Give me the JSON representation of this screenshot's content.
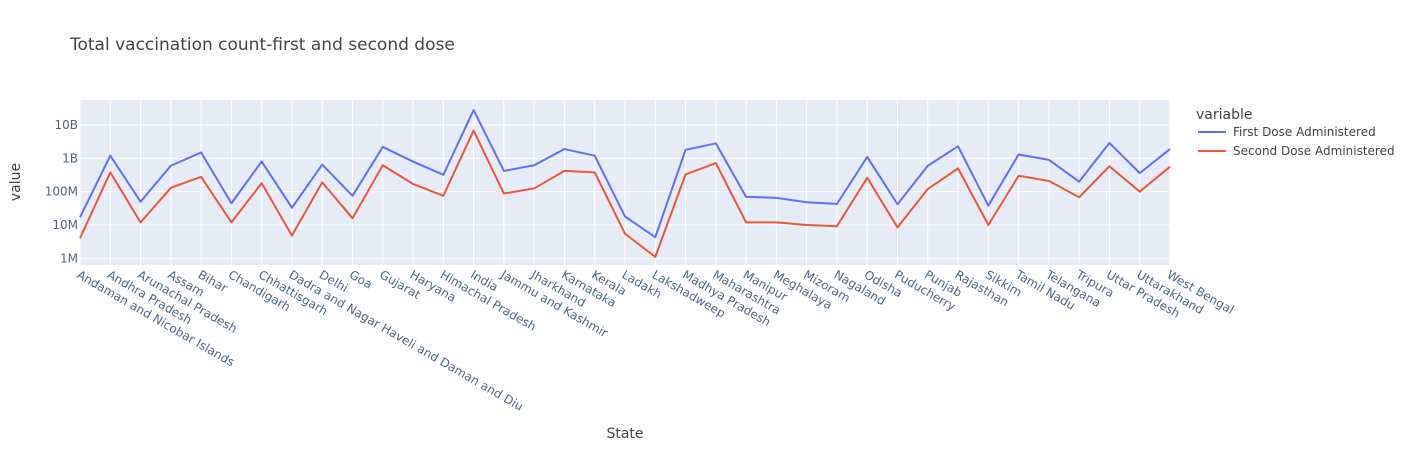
{
  "chart_data": {
    "type": "line",
    "title": "Total vaccination count-first and second dose",
    "xlabel": "State",
    "ylabel": "value",
    "yscale": "log",
    "ylim_log10": [
      5.8,
      10.75
    ],
    "grid": true,
    "legend_placement": "right",
    "legend_title": "variable",
    "y_ticks": [
      {
        "value": 1000000,
        "label": "1M"
      },
      {
        "value": 10000000,
        "label": "10M"
      },
      {
        "value": 100000000,
        "label": "100M"
      },
      {
        "value": 1000000000,
        "label": "1B"
      },
      {
        "value": 10000000000,
        "label": "10B"
      }
    ],
    "categories": [
      "Andaman and Nicobar Islands",
      "Andhra Pradesh",
      "Arunachal Pradesh",
      "Assam",
      "Bihar",
      "Chandigarh",
      "Chhattisgarh",
      "Dadra and Nagar Haveli and Daman and Diu",
      "Delhi",
      "Goa",
      "Gujarat",
      "Haryana",
      "Himachal Pradesh",
      "India",
      "Jammu and Kashmir",
      "Jharkhand",
      "Karnataka",
      "Kerala",
      "Ladakh",
      "Lakshadweep",
      "Madhya Pradesh",
      "Maharashtra",
      "Manipur",
      "Meghalaya",
      "Mizoram",
      "Nagaland",
      "Odisha",
      "Puducherry",
      "Punjab",
      "Rajasthan",
      "Sikkim",
      "Tamil Nadu",
      "Telangana",
      "Tripura",
      "Uttar Pradesh",
      "Uttarakhand",
      "West Bengal"
    ],
    "series": [
      {
        "name": "First Dose Administered",
        "color": "#636efa",
        "values": [
          17000000,
          1200000000,
          50000000,
          600000000,
          1500000000,
          45000000,
          800000000,
          33000000,
          650000000,
          75000000,
          2200000000,
          800000000,
          320000000,
          28000000000,
          420000000,
          620000000,
          1900000000,
          1200000000,
          18000000,
          4300000,
          1800000000,
          2800000000,
          70000000,
          65000000,
          48000000,
          43000000,
          1100000000,
          42000000,
          600000000,
          2300000000,
          38000000,
          1300000000,
          900000000,
          200000000,
          2900000000,
          360000000,
          1900000000
        ]
      },
      {
        "name": "Second Dose Administered",
        "color": "#ef553b",
        "values": [
          4000000,
          380000000,
          12000000,
          130000000,
          280000000,
          12000000,
          180000000,
          4800000,
          190000000,
          16000000,
          620000000,
          170000000,
          75000000,
          6800000000,
          88000000,
          125000000,
          420000000,
          380000000,
          5500000,
          1100000,
          330000000,
          720000000,
          12000000,
          12000000,
          10000000,
          9200000,
          260000000,
          8500000,
          120000000,
          500000000,
          10000000,
          300000000,
          210000000,
          68000000,
          580000000,
          100000000,
          560000000
        ]
      }
    ]
  }
}
